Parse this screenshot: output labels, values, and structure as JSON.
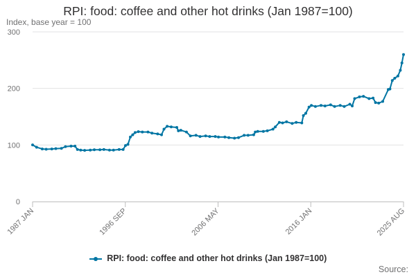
{
  "chart_data": {
    "type": "line",
    "title": "RPI: food: coffee and other hot drinks (Jan 1987=100)",
    "subtitle": "Index, base year = 100",
    "ylim": [
      0,
      300
    ],
    "yticks": [
      0,
      100,
      200,
      300
    ],
    "xticks": [
      "1987 JAN",
      "1996 SEP",
      "2006 MAY",
      "2016 JAN",
      "2025 AUG"
    ],
    "xlim": [
      "1987-01",
      "2025-08"
    ],
    "grid": true,
    "legend_position": "bottom",
    "series": [
      {
        "name": "RPI: food: coffee and other hot drinks (Jan 1987=100)",
        "color": "#0075a3",
        "points": [
          [
            "1987-01",
            100
          ],
          [
            "1987-06",
            96
          ],
          [
            "1988-01",
            93
          ],
          [
            "1988-06",
            92.5
          ],
          [
            "1989-01",
            93
          ],
          [
            "1989-06",
            93.5
          ],
          [
            "1990-01",
            94
          ],
          [
            "1990-06",
            97
          ],
          [
            "1991-01",
            98
          ],
          [
            "1991-06",
            98
          ],
          [
            "1991-09",
            92
          ],
          [
            "1992-01",
            91
          ],
          [
            "1992-06",
            90.5
          ],
          [
            "1993-01",
            91
          ],
          [
            "1993-06",
            91.5
          ],
          [
            "1994-01",
            91.5
          ],
          [
            "1994-06",
            92
          ],
          [
            "1995-01",
            91
          ],
          [
            "1995-06",
            91
          ],
          [
            "1996-01",
            92
          ],
          [
            "1996-06",
            92
          ],
          [
            "1996-09",
            99
          ],
          [
            "1996-12",
            101
          ],
          [
            "1997-03",
            114
          ],
          [
            "1997-06",
            118
          ],
          [
            "1997-09",
            122
          ],
          [
            "1998-01",
            123.5
          ],
          [
            "1998-06",
            123
          ],
          [
            "1999-01",
            123
          ],
          [
            "1999-06",
            121
          ],
          [
            "2000-01",
            119.5
          ],
          [
            "2000-06",
            118
          ],
          [
            "2000-09",
            128
          ],
          [
            "2001-01",
            133
          ],
          [
            "2001-06",
            132
          ],
          [
            "2002-01",
            131
          ],
          [
            "2002-03",
            125
          ],
          [
            "2002-06",
            126
          ],
          [
            "2003-01",
            123
          ],
          [
            "2003-06",
            116
          ],
          [
            "2004-01",
            117
          ],
          [
            "2004-06",
            115
          ],
          [
            "2005-01",
            116
          ],
          [
            "2005-06",
            115
          ],
          [
            "2006-01",
            115
          ],
          [
            "2006-05",
            114
          ],
          [
            "2007-01",
            114
          ],
          [
            "2007-06",
            113
          ],
          [
            "2008-01",
            112
          ],
          [
            "2008-06",
            113
          ],
          [
            "2009-01",
            117
          ],
          [
            "2009-06",
            117
          ],
          [
            "2010-01",
            118
          ],
          [
            "2010-03",
            123
          ],
          [
            "2010-06",
            124
          ],
          [
            "2011-01",
            124
          ],
          [
            "2011-06",
            125
          ],
          [
            "2012-01",
            128
          ],
          [
            "2012-04",
            132
          ],
          [
            "2012-09",
            140
          ],
          [
            "2013-01",
            139
          ],
          [
            "2013-06",
            141
          ],
          [
            "2014-01",
            138
          ],
          [
            "2014-06",
            140
          ],
          [
            "2015-01",
            139
          ],
          [
            "2015-03",
            152
          ],
          [
            "2015-06",
            156
          ],
          [
            "2015-10",
            167
          ],
          [
            "2016-01",
            170
          ],
          [
            "2016-06",
            168
          ],
          [
            "2017-01",
            170
          ],
          [
            "2017-06",
            169
          ],
          [
            "2018-01",
            171
          ],
          [
            "2018-06",
            168
          ],
          [
            "2019-01",
            170
          ],
          [
            "2019-06",
            168
          ],
          [
            "2020-01",
            172
          ],
          [
            "2020-04",
            169
          ],
          [
            "2020-07",
            182
          ],
          [
            "2021-01",
            185
          ],
          [
            "2021-06",
            186
          ],
          [
            "2022-01",
            182
          ],
          [
            "2022-06",
            183
          ],
          [
            "2022-09",
            175
          ],
          [
            "2023-01",
            174
          ],
          [
            "2023-06",
            177
          ],
          [
            "2024-01",
            198
          ],
          [
            "2024-03",
            199
          ],
          [
            "2024-06",
            214
          ],
          [
            "2024-09",
            218
          ],
          [
            "2025-01",
            222
          ],
          [
            "2025-04",
            232
          ],
          [
            "2025-06",
            245
          ],
          [
            "2025-08",
            260
          ]
        ]
      }
    ]
  },
  "source_label": "Source:"
}
